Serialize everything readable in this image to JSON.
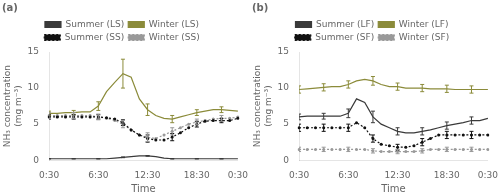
{
  "chart_data": [
    {
      "type": "line",
      "title": "(a)",
      "xlabel": "Time",
      "ylabel": "NH₃ concentration\n(mg m⁻³)",
      "categories": [
        "0:30",
        null,
        null,
        null,
        null,
        null,
        "6:30",
        null,
        null,
        null,
        null,
        null,
        "12:30",
        null,
        null,
        null,
        null,
        null,
        "18:30",
        null,
        null,
        null,
        null,
        "0:30"
      ],
      "ylim": [
        0,
        15
      ],
      "yticks": [
        0,
        5,
        10,
        15
      ],
      "grid": false,
      "legend": "top",
      "series": [
        {
          "name": "Summer (LS)",
          "color": "#3a3a3a",
          "line_style": "solid",
          "marker": "none",
          "values": [
            0.2,
            0.2,
            0.2,
            0.2,
            0.2,
            0.2,
            0.2,
            0.2,
            0.3,
            0.4,
            0.5,
            0.6,
            0.6,
            0.5,
            0.3,
            0.2,
            0.2,
            0.2,
            0.2,
            0.2,
            0.2,
            0.2,
            0.2,
            0.2
          ],
          "errors": [
            0.03,
            null,
            null,
            0.03,
            null,
            null,
            0.03,
            null,
            null,
            0.05,
            null,
            null,
            0.05,
            null,
            null,
            0.03,
            null,
            null,
            0.03,
            null,
            null,
            0.03,
            null,
            null
          ]
        },
        {
          "name": "Winter (LS)",
          "color": "#8B8B3A",
          "line_style": "solid",
          "marker": "none",
          "values": [
            6.5,
            6.5,
            6.6,
            6.6,
            6.7,
            6.7,
            7.5,
            9.5,
            10.8,
            12.0,
            11.5,
            8.5,
            7.0,
            6.2,
            5.8,
            5.7,
            6.0,
            6.3,
            6.6,
            6.8,
            7.0,
            7.0,
            6.9,
            6.8
          ],
          "errors": [
            0.3,
            null,
            null,
            0.3,
            null,
            null,
            0.6,
            null,
            null,
            2.0,
            null,
            null,
            0.8,
            null,
            null,
            0.5,
            null,
            null,
            0.4,
            null,
            null,
            0.4,
            null,
            null
          ]
        },
        {
          "name": "Summer (SS)",
          "color": "#111111",
          "line_style": "dotted",
          "marker": "point",
          "values": [
            6.0,
            6.0,
            6.0,
            6.0,
            6.0,
            6.0,
            6.0,
            5.9,
            5.7,
            5.2,
            4.2,
            3.5,
            3.0,
            2.8,
            2.8,
            3.2,
            3.8,
            4.5,
            5.0,
            5.4,
            5.5,
            5.5,
            5.5,
            5.8
          ],
          "errors": [
            0.3,
            null,
            null,
            0.3,
            null,
            null,
            0.3,
            null,
            null,
            0.4,
            null,
            null,
            0.5,
            null,
            null,
            0.5,
            null,
            null,
            0.4,
            null,
            null,
            0.3,
            null,
            null
          ]
        },
        {
          "name": "Winter (SS)",
          "color": "#999999",
          "line_style": "dotted",
          "marker": "point",
          "values": [
            6.2,
            6.2,
            6.2,
            6.2,
            6.2,
            6.2,
            6.0,
            5.8,
            5.5,
            5.0,
            4.2,
            3.5,
            3.2,
            3.0,
            3.5,
            4.0,
            4.5,
            5.0,
            5.3,
            5.5,
            5.7,
            5.8,
            5.8,
            6.0
          ],
          "errors": [
            0.4,
            null,
            null,
            0.4,
            null,
            null,
            0.4,
            null,
            null,
            0.5,
            null,
            null,
            0.6,
            null,
            null,
            0.5,
            null,
            null,
            0.4,
            null,
            null,
            0.4,
            null,
            null
          ]
        }
      ]
    },
    {
      "type": "line",
      "title": "(b)",
      "xlabel": "Time",
      "ylabel": "NH₃ concentration\n(mg m⁻³)",
      "categories": [
        "0:30",
        null,
        null,
        null,
        null,
        null,
        "6:30",
        null,
        null,
        null,
        null,
        null,
        "12:30",
        null,
        null,
        null,
        null,
        null,
        "18:30",
        null,
        null,
        null,
        null,
        "0:30"
      ],
      "ylim": [
        0,
        15
      ],
      "yticks": [
        0,
        5,
        10,
        15
      ],
      "grid": false,
      "legend": "top",
      "series": [
        {
          "name": "Summer (LF)",
          "color": "#3a3a3a",
          "line_style": "solid",
          "marker": "none",
          "values": [
            6.0,
            6.1,
            6.1,
            6.1,
            6.1,
            6.1,
            6.5,
            8.5,
            8.0,
            6.0,
            5.0,
            4.5,
            4.0,
            3.8,
            3.8,
            4.0,
            4.2,
            4.5,
            4.8,
            5.0,
            5.2,
            5.5,
            5.5,
            5.8
          ],
          "errors": [
            0.4,
            null,
            null,
            0.4,
            null,
            null,
            0.6,
            null,
            null,
            0.8,
            null,
            null,
            0.5,
            null,
            null,
            0.5,
            null,
            null,
            0.5,
            null,
            null,
            0.5,
            null,
            null
          ]
        },
        {
          "name": "Winter (LF)",
          "color": "#8B8B3A",
          "line_style": "solid",
          "marker": "none",
          "values": [
            9.8,
            9.9,
            10.0,
            10.1,
            10.2,
            10.2,
            10.5,
            11.0,
            11.2,
            11.0,
            10.5,
            10.2,
            10.2,
            10.0,
            10.0,
            10.0,
            9.9,
            9.9,
            9.9,
            9.8,
            9.8,
            9.8,
            9.8,
            9.8
          ],
          "errors": [
            0.5,
            null,
            null,
            0.5,
            null,
            null,
            0.5,
            null,
            null,
            0.6,
            null,
            null,
            0.5,
            null,
            null,
            0.5,
            null,
            null,
            0.5,
            null,
            null,
            0.5,
            null,
            null
          ]
        },
        {
          "name": "Summer (SF)",
          "color": "#111111",
          "line_style": "dotted",
          "marker": "point",
          "values": [
            4.5,
            4.5,
            4.5,
            4.5,
            4.5,
            4.5,
            4.5,
            5.2,
            4.5,
            3.0,
            2.2,
            2.0,
            1.8,
            1.8,
            2.0,
            2.5,
            3.0,
            3.5,
            3.5,
            3.5,
            3.5,
            3.5,
            3.5,
            3.5
          ],
          "errors": [
            0.5,
            null,
            null,
            0.5,
            null,
            null,
            0.5,
            null,
            null,
            0.5,
            null,
            null,
            0.4,
            null,
            null,
            0.5,
            null,
            null,
            0.5,
            null,
            null,
            0.5,
            null,
            null
          ]
        },
        {
          "name": "Winter (SF)",
          "color": "#999999",
          "line_style": "dotted",
          "marker": "point",
          "values": [
            1.5,
            1.5,
            1.5,
            1.5,
            1.5,
            1.5,
            1.5,
            1.5,
            1.5,
            1.3,
            1.2,
            1.2,
            1.2,
            1.2,
            1.2,
            1.3,
            1.5,
            1.5,
            1.5,
            1.5,
            1.5,
            1.5,
            1.5,
            1.5
          ],
          "errors": [
            0.3,
            null,
            null,
            0.3,
            null,
            null,
            0.3,
            null,
            null,
            0.3,
            null,
            null,
            0.3,
            null,
            null,
            0.3,
            null,
            null,
            0.3,
            null,
            null,
            0.3,
            null,
            null
          ]
        }
      ]
    }
  ]
}
